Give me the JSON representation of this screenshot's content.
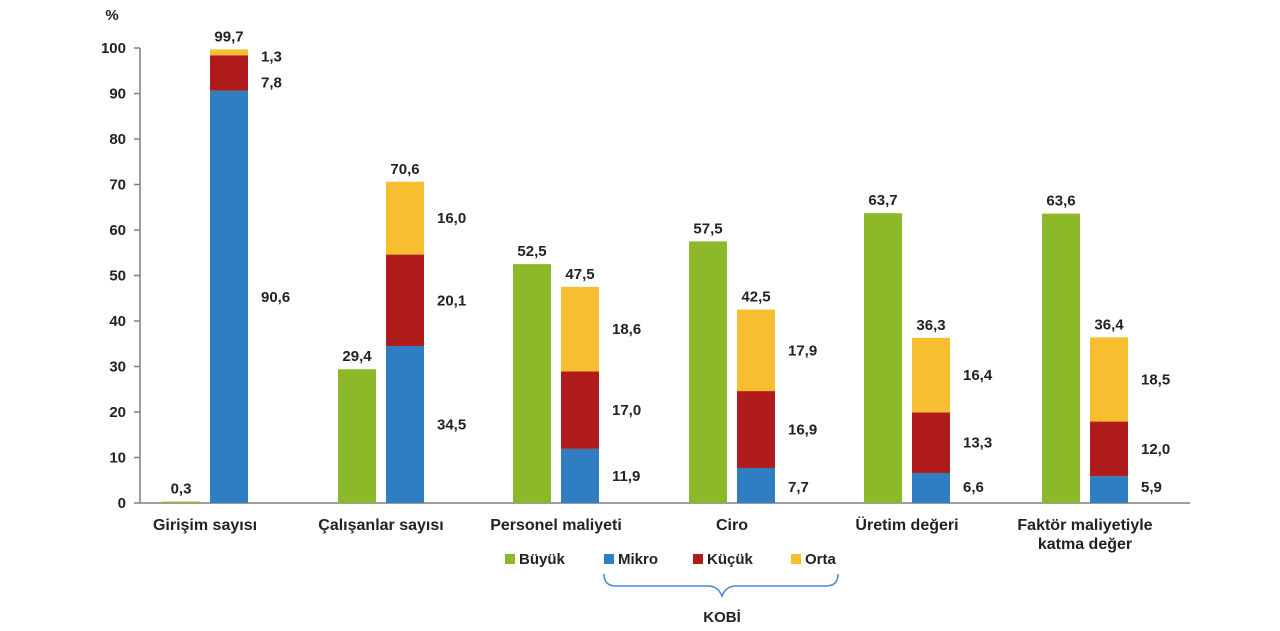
{
  "chart_data": {
    "type": "bar",
    "ylabel": "%",
    "ylim": [
      0,
      100
    ],
    "yticks": [
      0,
      10,
      20,
      30,
      40,
      50,
      60,
      70,
      80,
      90,
      100
    ],
    "grid": false,
    "legend_placement": "bottom",
    "colors": {
      "Büyük": "#8db829",
      "Mikro": "#2f7ec4",
      "Küçük": "#b01c1c",
      "Orta": "#f7be30"
    },
    "categories": [
      [
        "Girişim sayısı"
      ],
      [
        "Çalışanlar sayısı"
      ],
      [
        "Personel maliyeti"
      ],
      [
        "Ciro"
      ],
      [
        "Üretim değeri"
      ],
      [
        "Faktör maliyetiyle",
        "katma değer"
      ]
    ],
    "series": [
      {
        "name": "Büyük",
        "values": [
          0.3,
          29.4,
          52.5,
          57.5,
          63.7,
          63.6
        ]
      },
      {
        "name": "Mikro",
        "values": [
          90.6,
          34.5,
          11.9,
          7.7,
          6.6,
          5.9
        ]
      },
      {
        "name": "Küçük",
        "values": [
          7.8,
          20.1,
          17.0,
          16.9,
          13.3,
          12.0
        ]
      },
      {
        "name": "Orta",
        "values": [
          1.3,
          16.0,
          18.6,
          17.9,
          16.4,
          18.5
        ]
      }
    ],
    "data_labels": {
      "Büyük": [
        "0,3",
        "29,4",
        "52,5",
        "57,5",
        "63,7",
        "63,6"
      ],
      "Mikro": [
        "90,6",
        "34,5",
        "11,9",
        "7,7",
        "6,6",
        "5,9"
      ],
      "Küçük": [
        "7,8",
        "20,1",
        "17,0",
        "16,9",
        "13,3",
        "12,0"
      ],
      "Orta": [
        "1,3",
        "16,0",
        "18,6",
        "17,9",
        "16,4",
        "18,5"
      ],
      "KOBİ total": [
        "99,7",
        "70,6",
        "47,5",
        "42,5",
        "36,3",
        "36,4"
      ]
    },
    "stack_group": {
      "name": "KOBİ",
      "members": [
        "Mikro",
        "Küçük",
        "Orta"
      ]
    }
  }
}
